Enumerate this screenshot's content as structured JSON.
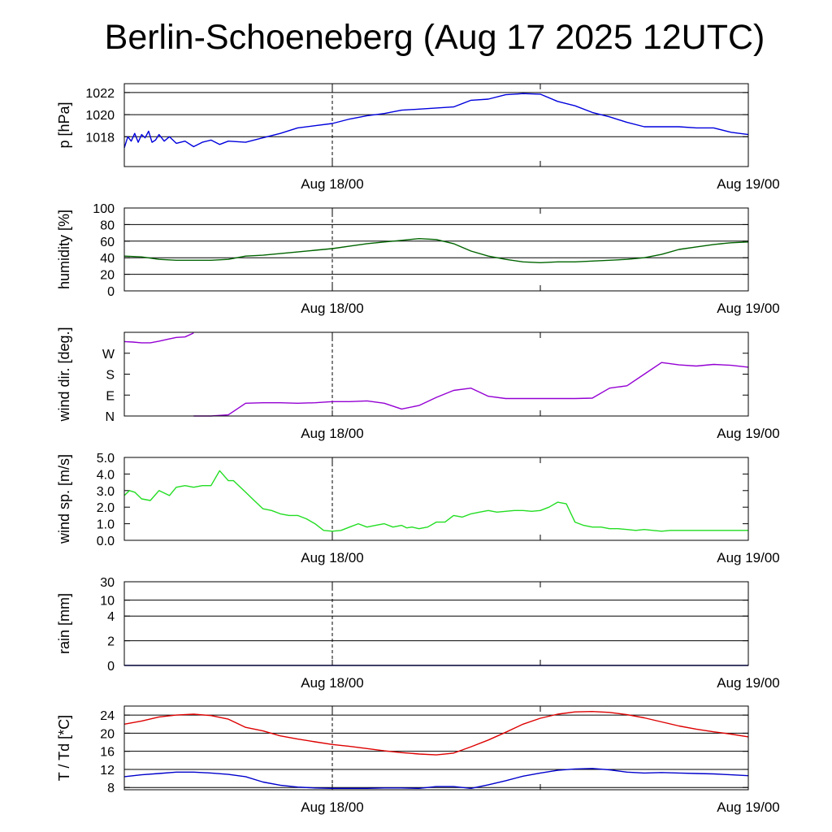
{
  "title": "Berlin-Schoeneberg (Aug 17 2025 12UTC)",
  "x_labels": [
    "Aug 18/00",
    "Aug 19/00"
  ],
  "chart_data": [
    {
      "id": "pressure",
      "type": "line",
      "ylabel": "p [hPa]",
      "ylim": [
        1015.3,
        1022.8
      ],
      "yticks": [
        1018,
        1020,
        1022
      ],
      "ytick_labels": [
        "1018",
        "1020",
        "1022"
      ],
      "grid": true,
      "xlim": [
        12,
        48
      ],
      "series": [
        {
          "color": "#0000dd",
          "x": [
            12,
            12.2,
            12.4,
            12.6,
            12.8,
            13,
            13.2,
            13.4,
            13.6,
            13.8,
            14,
            14.3,
            14.6,
            15,
            15.5,
            16,
            16.5,
            17,
            17.5,
            18,
            19,
            20,
            21,
            22,
            23,
            24,
            25,
            26,
            27,
            28,
            29,
            30,
            31,
            32,
            33,
            34,
            35,
            36,
            37,
            38,
            39,
            40,
            41,
            42,
            43,
            44,
            45,
            46,
            47,
            48
          ],
          "y": [
            1017.0,
            1018.0,
            1017.6,
            1018.3,
            1017.5,
            1018.2,
            1017.9,
            1018.5,
            1017.5,
            1017.7,
            1018.2,
            1017.6,
            1018.0,
            1017.4,
            1017.6,
            1017.1,
            1017.5,
            1017.7,
            1017.3,
            1017.6,
            1017.5,
            1017.9,
            1018.3,
            1018.8,
            1019.0,
            1019.2,
            1019.6,
            1019.9,
            1020.1,
            1020.4,
            1020.5,
            1020.6,
            1020.7,
            1021.3,
            1021.4,
            1021.8,
            1021.9,
            1021.85,
            1021.2,
            1020.8,
            1020.2,
            1019.8,
            1019.3,
            1018.9,
            1018.9,
            1018.9,
            1018.8,
            1018.8,
            1018.4,
            1018.2
          ]
        }
      ]
    },
    {
      "id": "humidity",
      "type": "line",
      "ylabel": "humidity [%]",
      "ylim": [
        0,
        100
      ],
      "yticks": [
        0,
        20,
        40,
        60,
        80,
        100
      ],
      "ytick_labels": [
        "0",
        "20",
        "40",
        "60",
        "80",
        "100"
      ],
      "grid": true,
      "xlim": [
        12,
        48
      ],
      "series": [
        {
          "color": "#006400",
          "x": [
            12,
            13,
            14,
            15,
            16,
            17,
            18,
            19,
            20,
            21,
            22,
            23,
            24,
            25,
            26,
            27,
            28,
            29,
            30,
            31,
            32,
            33,
            34,
            35,
            36,
            37,
            38,
            39,
            40,
            41,
            42,
            43,
            44,
            45,
            46,
            47,
            48
          ],
          "y": [
            42,
            41,
            38,
            37,
            37,
            37,
            38,
            42,
            43,
            45,
            47,
            49,
            51,
            54,
            57,
            59,
            61,
            63,
            62,
            57,
            48,
            42,
            38,
            35,
            34,
            35,
            35,
            36,
            37,
            38,
            40,
            44,
            50,
            53,
            56,
            58,
            59
          ]
        }
      ]
    },
    {
      "id": "wind_direction",
      "type": "line",
      "ylabel": "wind dir. [deg.]",
      "ylim": [
        0,
        360
      ],
      "yticks": [
        0,
        90,
        180,
        270
      ],
      "ytick_labels": [
        "N",
        "E",
        "S",
        "W"
      ],
      "grid": false,
      "xlim": [
        12,
        48
      ],
      "series": [
        {
          "color": "#9400d3",
          "segments": [
            {
              "x": [
                12,
                12.5,
                13,
                13.5,
                14,
                14.5,
                15,
                15.5,
                16
              ],
              "y": [
                320,
                318,
                315,
                315,
                322,
                330,
                338,
                340,
                357
              ]
            },
            {
              "x": [
                16,
                17,
                18,
                18.5,
                19,
                20,
                21,
                22,
                23,
                24,
                25,
                26,
                27,
                28,
                29,
                30,
                31,
                32,
                33,
                34,
                35,
                36,
                37,
                38,
                39,
                40,
                41,
                42,
                43,
                44,
                45,
                46,
                47,
                48
              ],
              "y": [
                0,
                0,
                5,
                30,
                55,
                57,
                57,
                55,
                57,
                62,
                62,
                65,
                55,
                30,
                45,
                80,
                110,
                120,
                85,
                75,
                75,
                75,
                75,
                75,
                77,
                120,
                130,
                180,
                230,
                220,
                215,
                222,
                218,
                210
              ]
            }
          ]
        }
      ]
    },
    {
      "id": "wind_speed",
      "type": "line",
      "ylabel": "wind sp. [m/s]",
      "ylim": [
        0,
        5
      ],
      "yticks": [
        0,
        1,
        2,
        3,
        4,
        5
      ],
      "ytick_labels": [
        "0.0",
        "1.0",
        "2.0",
        "3.0",
        "4.0",
        "5.0"
      ],
      "grid": false,
      "xlim": [
        12,
        48
      ],
      "series": [
        {
          "color": "#22dd22",
          "x": [
            12,
            12.3,
            12.6,
            13,
            13.5,
            14,
            14.6,
            15,
            15.5,
            16,
            16.5,
            17,
            17.5,
            18,
            18.3,
            18.6,
            19,
            19.3,
            19.6,
            20,
            20.5,
            21,
            21.5,
            22,
            22.5,
            23,
            23.5,
            24,
            24.5,
            25,
            25.5,
            26,
            26.5,
            27,
            27.5,
            28,
            28.3,
            28.6,
            29,
            29.5,
            30,
            30.5,
            31,
            31.5,
            32,
            32.5,
            33,
            33.5,
            34,
            34.5,
            35,
            35.5,
            36,
            36.5,
            37,
            37.5,
            38,
            38.5,
            39,
            39.5,
            40,
            40.5,
            41,
            41.5,
            42,
            42.5,
            43,
            43.5,
            44,
            44.5,
            45,
            45.5,
            46,
            46.5,
            47,
            47.5,
            48
          ],
          "y": [
            2.7,
            3.0,
            2.9,
            2.5,
            2.4,
            3.0,
            2.7,
            3.2,
            3.3,
            3.2,
            3.3,
            3.3,
            4.2,
            3.6,
            3.6,
            3.3,
            2.9,
            2.6,
            2.3,
            1.9,
            1.8,
            1.6,
            1.5,
            1.5,
            1.3,
            1.0,
            0.6,
            0.55,
            0.6,
            0.8,
            1.0,
            0.8,
            0.9,
            1.0,
            0.8,
            0.9,
            0.75,
            0.8,
            0.7,
            0.8,
            1.1,
            1.1,
            1.5,
            1.4,
            1.6,
            1.7,
            1.8,
            1.7,
            1.75,
            1.8,
            1.8,
            1.75,
            1.8,
            2.0,
            2.3,
            2.2,
            1.1,
            0.9,
            0.8,
            0.8,
            0.7,
            0.7,
            0.65,
            0.6,
            0.65,
            0.6,
            0.55,
            0.6,
            0.6,
            0.6,
            0.6,
            0.6,
            0.6,
            0.6,
            0.6,
            0.6,
            0.6
          ]
        }
      ]
    },
    {
      "id": "rain",
      "type": "bar",
      "ylabel": "rain [mm]",
      "ylim": [
        0,
        30
      ],
      "yticks": [
        0,
        2,
        4,
        10,
        30
      ],
      "ytick_labels": [
        "0",
        "2",
        "4",
        "10",
        "30"
      ],
      "grid": true,
      "xlim": [
        12,
        48
      ],
      "series": [
        {
          "color": "#0000aa",
          "x": [
            12,
            48
          ],
          "y": [
            0,
            0
          ]
        }
      ]
    },
    {
      "id": "temperature",
      "type": "line",
      "ylabel": "T / Td [*C]",
      "ylim": [
        7.5,
        26
      ],
      "yticks": [
        8,
        12,
        16,
        20,
        24
      ],
      "ytick_labels": [
        "8",
        "12",
        "16",
        "20",
        "24"
      ],
      "grid": true,
      "xlim": [
        12,
        48
      ],
      "series": [
        {
          "color": "#dd0000",
          "x": [
            12,
            13,
            14,
            15,
            16,
            17,
            18,
            19,
            20,
            21,
            22,
            23,
            24,
            25,
            26,
            27,
            28,
            29,
            30,
            31,
            32,
            33,
            34,
            35,
            36,
            37,
            38,
            39,
            40,
            41,
            42,
            43,
            44,
            45,
            46,
            47,
            48
          ],
          "y": [
            22,
            22.7,
            23.6,
            24,
            24.2,
            23.9,
            23.1,
            21.3,
            20.5,
            19.4,
            18.7,
            18.1,
            17.5,
            17.1,
            16.6,
            16.1,
            15.7,
            15.4,
            15.2,
            15.6,
            17.0,
            18.5,
            20.2,
            22,
            23.3,
            24.2,
            24.7,
            24.8,
            24.6,
            24.1,
            23.4,
            22.5,
            21.6,
            20.9,
            20.3,
            19.8,
            19.2
          ]
        },
        {
          "color": "#0000cc",
          "x": [
            12,
            13,
            14,
            15,
            16,
            17,
            18,
            19,
            20,
            21,
            22,
            23,
            24,
            25,
            26,
            27,
            28,
            29,
            30,
            31,
            32,
            33,
            34,
            35,
            36,
            37,
            38,
            39,
            40,
            41,
            42,
            43,
            44,
            45,
            46,
            47,
            48
          ],
          "y": [
            10.4,
            10.8,
            11.1,
            11.4,
            11.4,
            11.2,
            10.9,
            10.4,
            9.2,
            8.5,
            8.1,
            7.9,
            7.8,
            7.8,
            7.8,
            7.9,
            7.9,
            7.8,
            8.2,
            8.2,
            7.8,
            8.6,
            9.5,
            10.5,
            11.2,
            11.8,
            12.1,
            12.2,
            11.9,
            11.4,
            11.2,
            11.3,
            11.2,
            11.1,
            11.0,
            10.8,
            10.6
          ]
        }
      ]
    }
  ]
}
